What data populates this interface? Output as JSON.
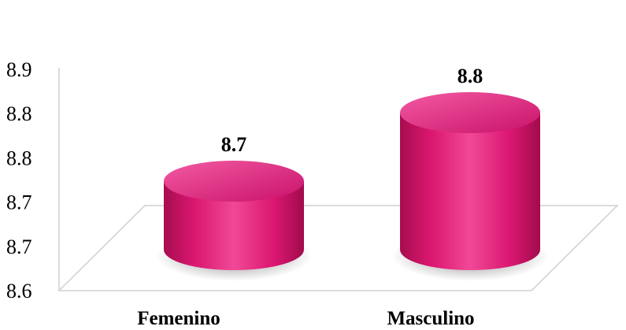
{
  "chart_data": {
    "type": "bar",
    "style": "3d-cylinder",
    "categories": [
      "Femenino",
      "Masculino"
    ],
    "values": [
      8.7,
      8.8
    ],
    "data_labels": [
      "8.7",
      "8.8"
    ],
    "y_tick_labels": [
      "8.6",
      "8.7",
      "8.7",
      "8.8",
      "8.8",
      "8.9"
    ],
    "ylim": [
      8.6,
      8.9
    ],
    "grid": false,
    "legend": "none",
    "bar_color": "#e8197a",
    "title": "",
    "xlabel": "",
    "ylabel": ""
  }
}
